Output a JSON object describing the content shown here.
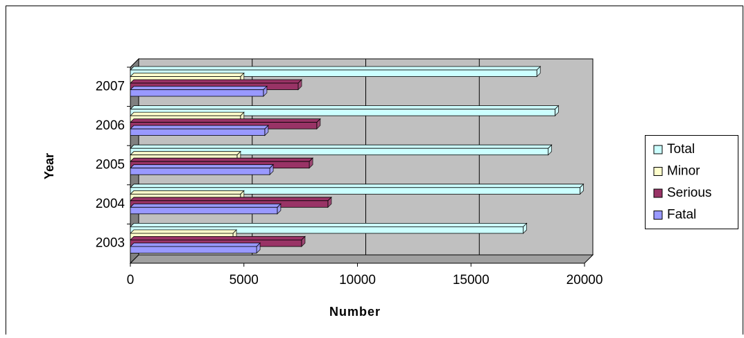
{
  "chart_data": {
    "type": "bar",
    "orientation": "horizontal",
    "x_label": "Number",
    "y_label": "Year",
    "categories": [
      "2003",
      "2004",
      "2005",
      "2006",
      "2007"
    ],
    "series": [
      {
        "name": "Total",
        "color": "#ccffff",
        "values": [
          17300,
          19800,
          18400,
          18700,
          17900
        ]
      },
      {
        "name": "Minor",
        "color": "#ffffcc",
        "values": [
          4520,
          4850,
          4700,
          4850,
          4850
        ]
      },
      {
        "name": "Serious",
        "color": "#993366",
        "values": [
          7540,
          8700,
          7880,
          8210,
          7390
        ]
      },
      {
        "name": "Fatal",
        "color": "#9999ff",
        "values": [
          5560,
          6470,
          6140,
          5920,
          5860
        ]
      }
    ],
    "xlim": [
      0,
      20000
    ],
    "xticks": [
      0,
      5000,
      10000,
      15000,
      20000
    ],
    "grid": true,
    "legend": "right"
  }
}
